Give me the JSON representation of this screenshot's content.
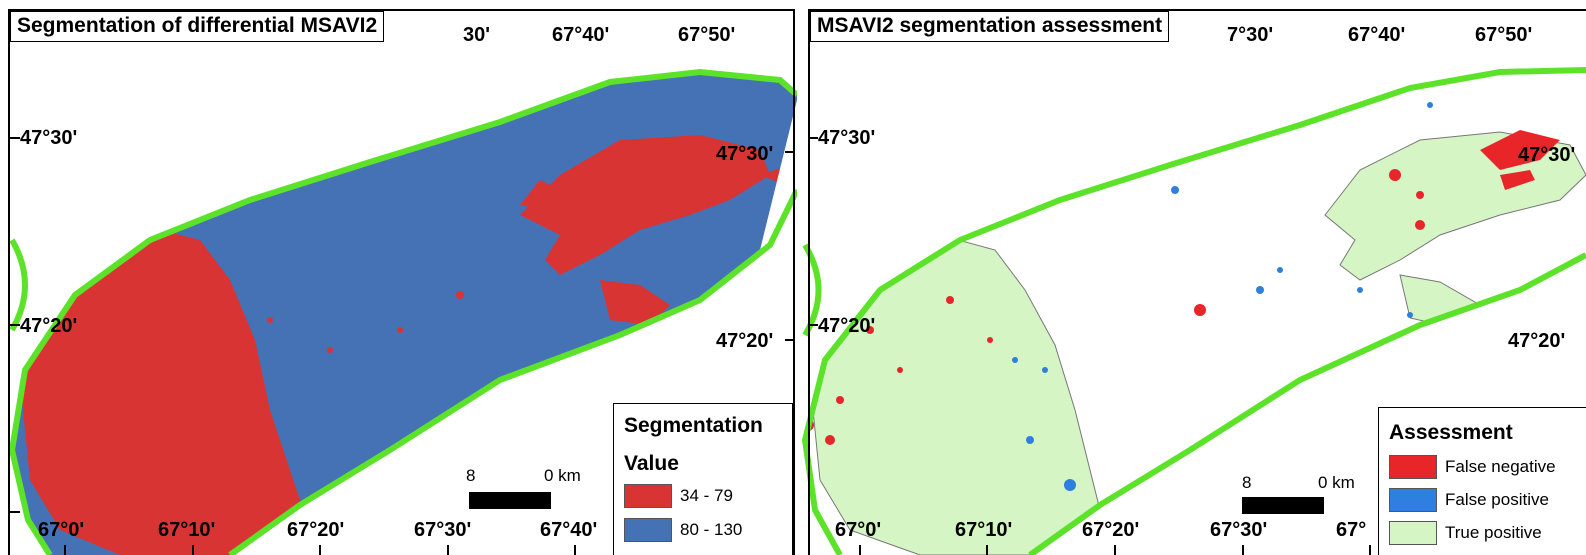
{
  "colors": {
    "boundary": "#5de22a",
    "low_segment": "#d93434",
    "high_segment": "#4472b5",
    "false_negative": "#e8262a",
    "false_positive": "#2f7fe0",
    "true_positive": "#d5f5c4"
  },
  "left_panel": {
    "title": "Segmentation of differential MSAVI2",
    "top_tick_labels": [
      "30'",
      "67°40'",
      "67°50'"
    ],
    "bottom_tick_labels": [
      "67°0'",
      "67°10'",
      "67°20'",
      "67°30'",
      "67°40'"
    ],
    "left_tick_labels": [
      "47°30'",
      "47°20'"
    ],
    "right_tick_labels": [
      "47°30'",
      "47°20'"
    ],
    "legend": {
      "title": "Segmentation",
      "subtitle": "Value",
      "items": [
        {
          "label": "34 - 79",
          "color": "#d93434"
        },
        {
          "label": "80 - 130",
          "color": "#4472b5"
        }
      ]
    },
    "scale": {
      "start": "8",
      "end": "0 km"
    }
  },
  "right_panel": {
    "title": "MSAVI2 segmentation assessment",
    "top_tick_labels": [
      "7°30'",
      "67°40'",
      "67°50'"
    ],
    "bottom_tick_labels": [
      "67°0'",
      "67°10'",
      "67°20'",
      "67°30'",
      "67°"
    ],
    "left_tick_labels": [
      "47°30'",
      "47°20'"
    ],
    "right_tick_labels": [
      "47°30'",
      "47°20'"
    ],
    "legend": {
      "title": "Assessment",
      "items": [
        {
          "label": "False negative",
          "color": "#e8262a"
        },
        {
          "label": "False positive",
          "color": "#2f7fe0"
        },
        {
          "label": "True positive",
          "color": "#d5f5c4"
        }
      ]
    },
    "scale": {
      "start": "8",
      "end": "0 km"
    }
  }
}
